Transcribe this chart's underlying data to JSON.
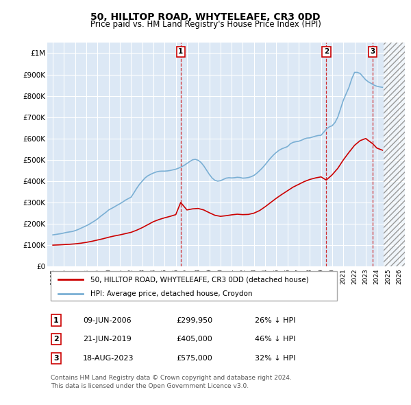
{
  "title": "50, HILLTOP ROAD, WHYTELEAFE, CR3 0DD",
  "subtitle": "Price paid vs. HM Land Registry's House Price Index (HPI)",
  "background_color": "#ffffff",
  "plot_bg_color": "#dce8f5",
  "grid_color": "#ffffff",
  "hpi_color": "#7aafd4",
  "price_color": "#cc0000",
  "ylim": [
    0,
    1050000
  ],
  "yticks": [
    0,
    100000,
    200000,
    300000,
    400000,
    500000,
    600000,
    700000,
    800000,
    900000,
    1000000
  ],
  "ytick_labels": [
    "£0",
    "£100K",
    "£200K",
    "£300K",
    "£400K",
    "£500K",
    "£600K",
    "£700K",
    "£800K",
    "£900K",
    "£1M"
  ],
  "xlim_start": 1994.5,
  "xlim_end": 2026.5,
  "xticks": [
    1995,
    1996,
    1997,
    1998,
    1999,
    2000,
    2001,
    2002,
    2003,
    2004,
    2005,
    2006,
    2007,
    2008,
    2009,
    2010,
    2011,
    2012,
    2013,
    2014,
    2015,
    2016,
    2017,
    2018,
    2019,
    2020,
    2021,
    2022,
    2023,
    2024,
    2025,
    2026
  ],
  "hatch_start": 2024.58,
  "transactions": [
    {
      "date": 2006.44,
      "price": 299950,
      "label": "1"
    },
    {
      "date": 2019.47,
      "price": 405000,
      "label": "2"
    },
    {
      "date": 2023.63,
      "price": 575000,
      "label": "3"
    }
  ],
  "legend_items": [
    {
      "label": "50, HILLTOP ROAD, WHYTELEAFE, CR3 0DD (detached house)",
      "color": "#cc0000"
    },
    {
      "label": "HPI: Average price, detached house, Croydon",
      "color": "#7aafd4"
    }
  ],
  "table_rows": [
    {
      "num": "1",
      "date": "09-JUN-2006",
      "price": "£299,950",
      "hpi": "26% ↓ HPI"
    },
    {
      "num": "2",
      "date": "21-JUN-2019",
      "price": "£405,000",
      "hpi": "46% ↓ HPI"
    },
    {
      "num": "3",
      "date": "18-AUG-2023",
      "price": "£575,000",
      "hpi": "32% ↓ HPI"
    }
  ],
  "footer": "Contains HM Land Registry data © Crown copyright and database right 2024.\nThis data is licensed under the Open Government Licence v3.0.",
  "hpi_data_x": [
    1995.0,
    1995.25,
    1995.5,
    1995.75,
    1996.0,
    1996.25,
    1996.5,
    1996.75,
    1997.0,
    1997.25,
    1997.5,
    1997.75,
    1998.0,
    1998.25,
    1998.5,
    1998.75,
    1999.0,
    1999.25,
    1999.5,
    1999.75,
    2000.0,
    2000.25,
    2000.5,
    2000.75,
    2001.0,
    2001.25,
    2001.5,
    2001.75,
    2002.0,
    2002.25,
    2002.5,
    2002.75,
    2003.0,
    2003.25,
    2003.5,
    2003.75,
    2004.0,
    2004.25,
    2004.5,
    2004.75,
    2005.0,
    2005.25,
    2005.5,
    2005.75,
    2006.0,
    2006.25,
    2006.5,
    2006.75,
    2007.0,
    2007.25,
    2007.5,
    2007.75,
    2008.0,
    2008.25,
    2008.5,
    2008.75,
    2009.0,
    2009.25,
    2009.5,
    2009.75,
    2010.0,
    2010.25,
    2010.5,
    2010.75,
    2011.0,
    2011.25,
    2011.5,
    2011.75,
    2012.0,
    2012.25,
    2012.5,
    2012.75,
    2013.0,
    2013.25,
    2013.5,
    2013.75,
    2014.0,
    2014.25,
    2014.5,
    2014.75,
    2015.0,
    2015.25,
    2015.5,
    2015.75,
    2016.0,
    2016.25,
    2016.5,
    2016.75,
    2017.0,
    2017.25,
    2017.5,
    2017.75,
    2018.0,
    2018.25,
    2018.5,
    2018.75,
    2019.0,
    2019.25,
    2019.5,
    2019.75,
    2020.0,
    2020.25,
    2020.5,
    2020.75,
    2021.0,
    2021.25,
    2021.5,
    2021.75,
    2022.0,
    2022.25,
    2022.5,
    2022.75,
    2023.0,
    2023.25,
    2023.5,
    2023.75,
    2024.0,
    2024.25,
    2024.5
  ],
  "hpi_data_y": [
    148000,
    150000,
    152000,
    154000,
    157000,
    160000,
    162000,
    164000,
    168000,
    173000,
    179000,
    185000,
    191000,
    198000,
    206000,
    214000,
    223000,
    234000,
    244000,
    254000,
    265000,
    272000,
    279000,
    287000,
    294000,
    302000,
    311000,
    318000,
    325000,
    345000,
    366000,
    385000,
    400000,
    415000,
    425000,
    432000,
    438000,
    443000,
    446000,
    447000,
    447000,
    448000,
    450000,
    453000,
    456000,
    461000,
    467000,
    474000,
    483000,
    492000,
    500000,
    502000,
    498000,
    488000,
    472000,
    452000,
    432000,
    415000,
    404000,
    400000,
    402000,
    408000,
    414000,
    416000,
    415000,
    416000,
    418000,
    417000,
    414000,
    415000,
    417000,
    421000,
    427000,
    437000,
    449000,
    462000,
    477000,
    494000,
    509000,
    523000,
    535000,
    545000,
    552000,
    557000,
    562000,
    575000,
    582000,
    585000,
    587000,
    592000,
    598000,
    602000,
    603000,
    607000,
    611000,
    614000,
    615000,
    630000,
    645000,
    655000,
    660000,
    675000,
    700000,
    740000,
    780000,
    810000,
    840000,
    880000,
    910000,
    910000,
    905000,
    890000,
    875000,
    865000,
    858000,
    850000,
    845000,
    842000,
    840000
  ],
  "price_line_x": [
    1995.0,
    1995.5,
    1996.0,
    1996.5,
    1997.0,
    1997.5,
    1998.0,
    1998.5,
    1999.0,
    1999.5,
    2000.0,
    2000.5,
    2001.0,
    2001.5,
    2002.0,
    2002.5,
    2003.0,
    2003.5,
    2004.0,
    2004.5,
    2005.0,
    2005.5,
    2006.0,
    2006.44,
    2007.0,
    2007.5,
    2008.0,
    2008.5,
    2009.0,
    2009.5,
    2010.0,
    2010.5,
    2011.0,
    2011.5,
    2012.0,
    2012.5,
    2013.0,
    2013.5,
    2014.0,
    2014.5,
    2015.0,
    2015.5,
    2016.0,
    2016.5,
    2017.0,
    2017.5,
    2018.0,
    2018.5,
    2019.0,
    2019.47,
    2020.0,
    2020.5,
    2021.0,
    2021.5,
    2022.0,
    2022.5,
    2023.0,
    2023.63,
    2024.0,
    2024.5
  ],
  "price_line_y": [
    100000,
    101000,
    102500,
    104000,
    106000,
    109000,
    113000,
    118000,
    124000,
    130000,
    137000,
    143000,
    148000,
    154000,
    160000,
    170000,
    182000,
    196000,
    210000,
    220000,
    228000,
    235000,
    243000,
    299950,
    265000,
    270000,
    272000,
    265000,
    252000,
    240000,
    235000,
    238000,
    242000,
    245000,
    243000,
    244000,
    250000,
    262000,
    280000,
    300000,
    320000,
    338000,
    355000,
    372000,
    385000,
    398000,
    408000,
    415000,
    420000,
    405000,
    430000,
    460000,
    500000,
    535000,
    568000,
    590000,
    600000,
    575000,
    555000,
    545000
  ]
}
